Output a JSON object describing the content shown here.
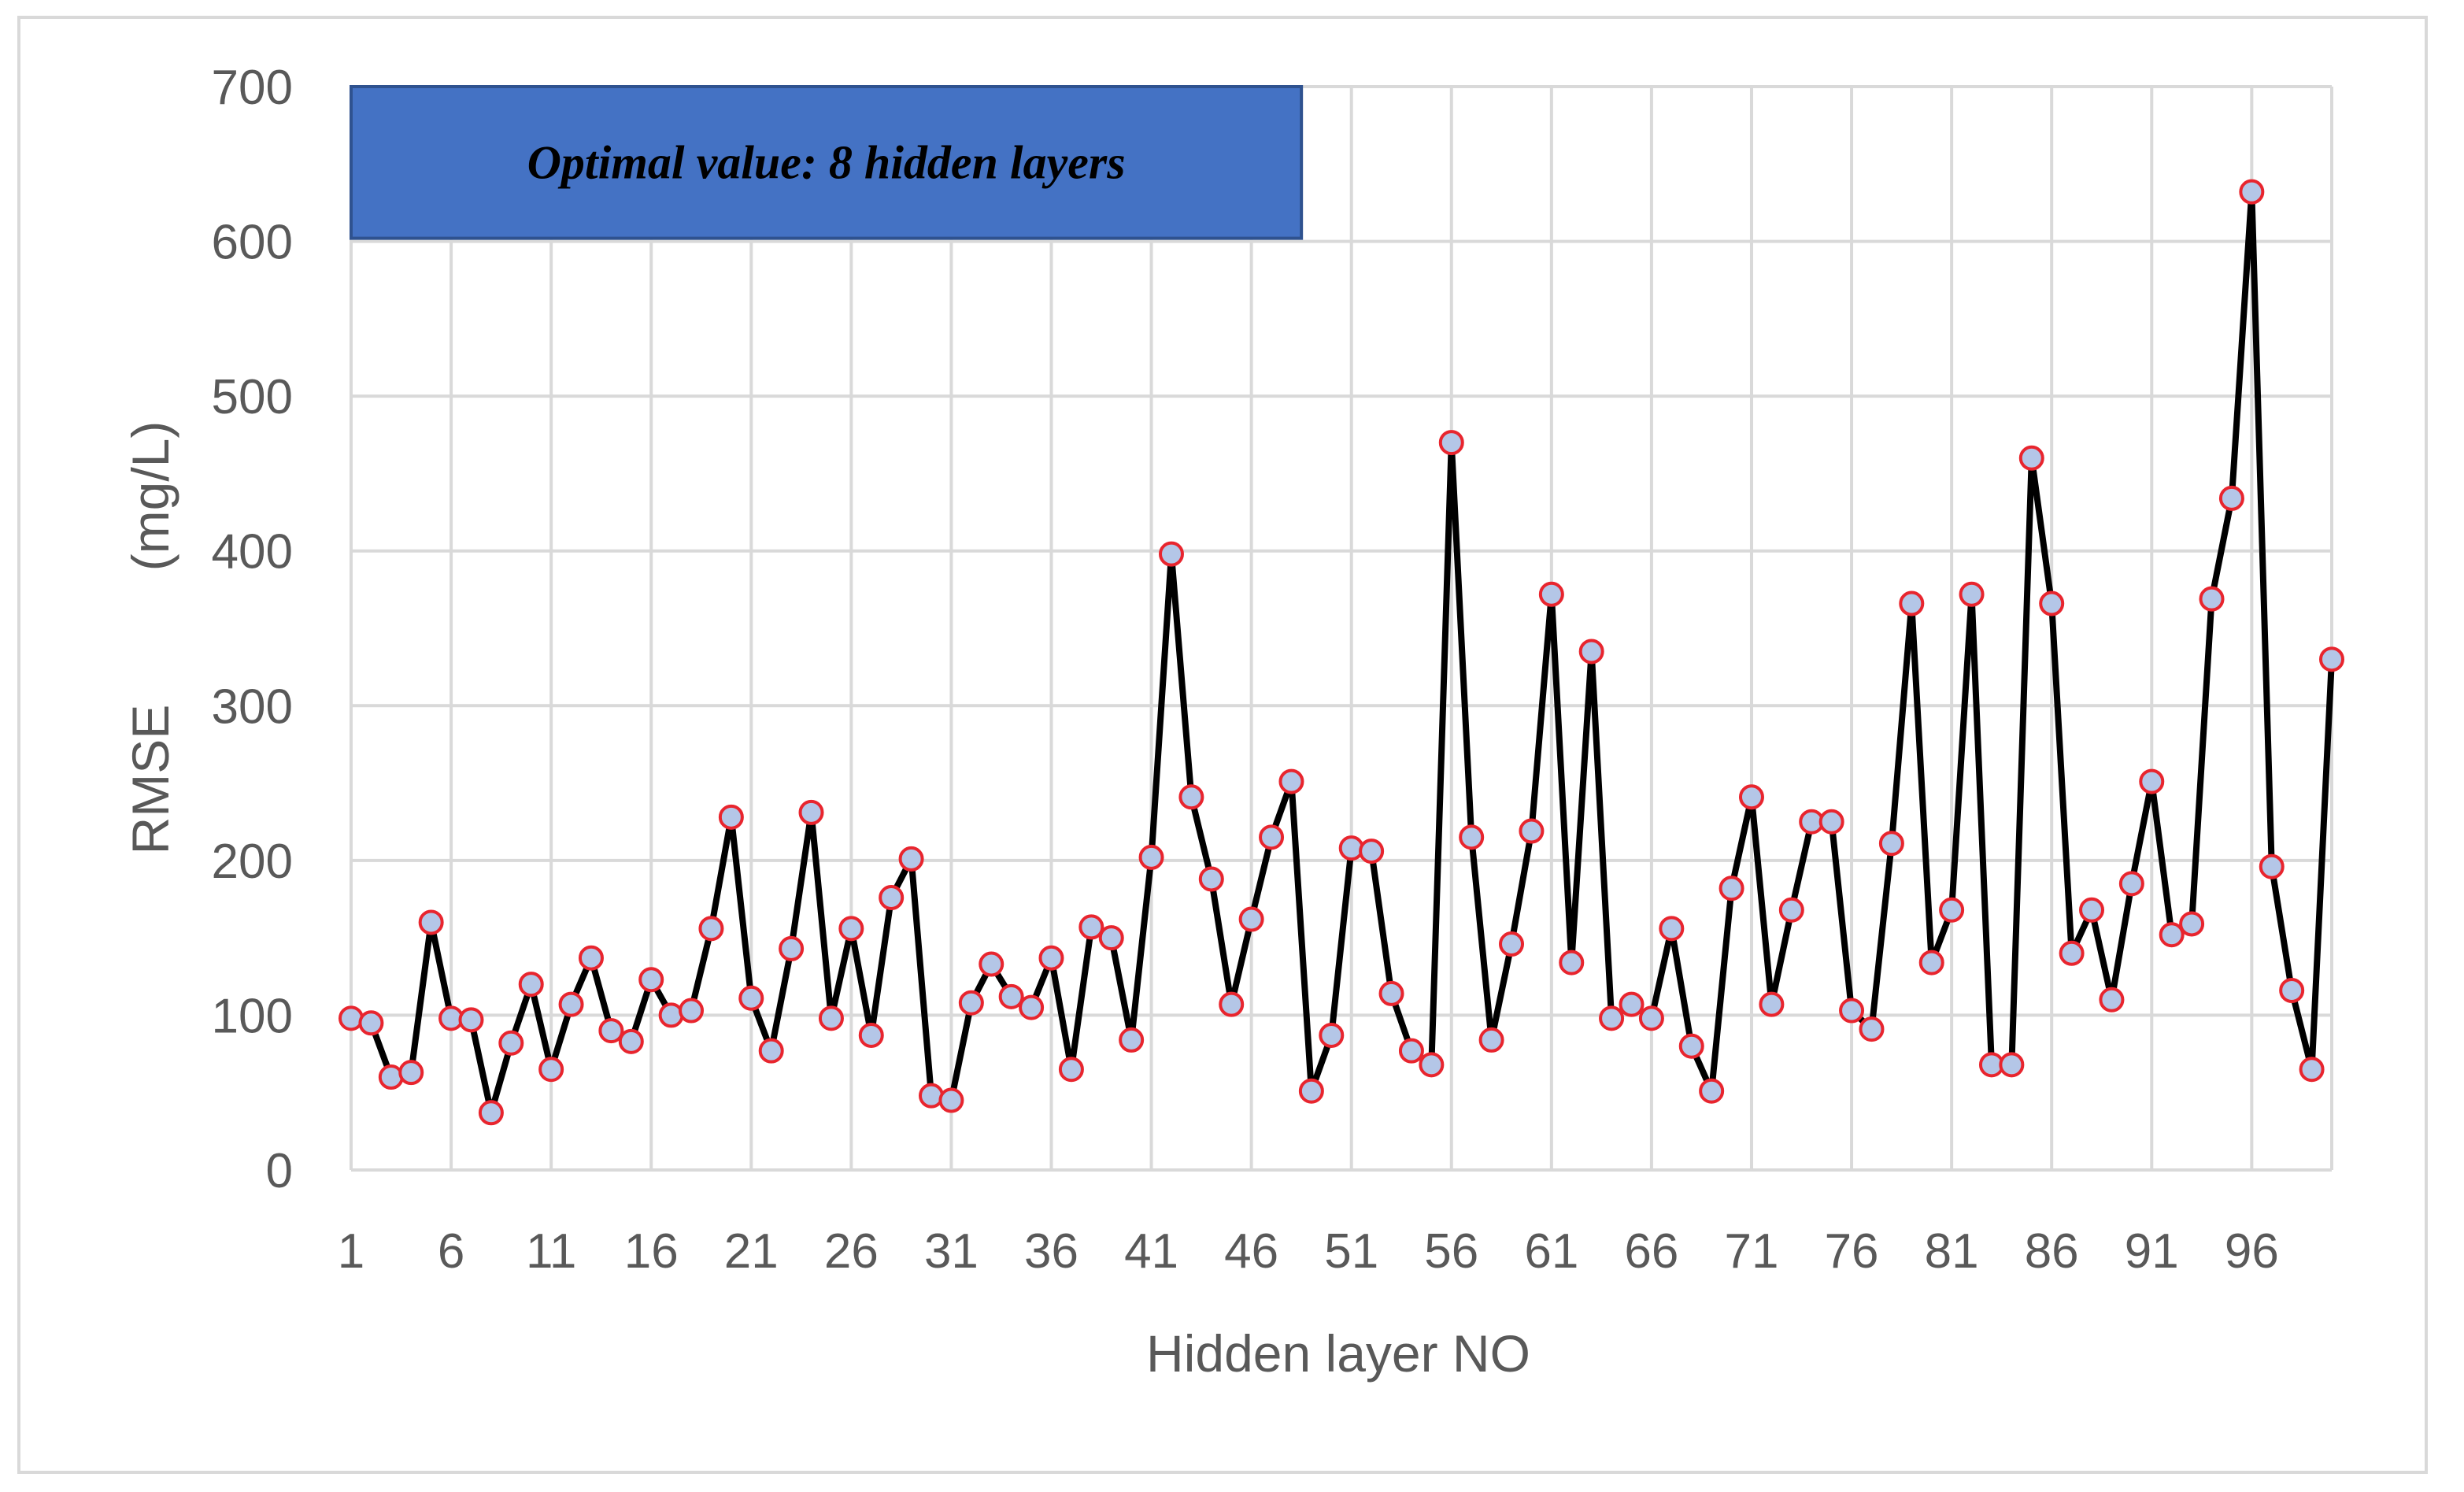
{
  "chart_data": {
    "type": "line",
    "xlabel": "Hidden layer NO",
    "ylabel": "RMSE",
    "ylabel_unit": "(mg/L)",
    "ylim": [
      0,
      700
    ],
    "yticks": [
      0,
      100,
      200,
      300,
      400,
      500,
      600,
      700
    ],
    "xtick_labels": [
      "1",
      "6",
      "11",
      "16",
      "21",
      "26",
      "31",
      "36",
      "41",
      "46",
      "51",
      "56",
      "61",
      "66",
      "71",
      "76",
      "81",
      "86",
      "91",
      "96"
    ],
    "annotation": "Optimal value: 8 hidden layers",
    "grid": true,
    "legend": "none",
    "x": [
      1,
      2,
      3,
      4,
      5,
      6,
      7,
      8,
      9,
      10,
      11,
      12,
      13,
      14,
      15,
      16,
      17,
      18,
      19,
      20,
      21,
      22,
      23,
      24,
      25,
      26,
      27,
      28,
      29,
      30,
      31,
      32,
      33,
      34,
      35,
      36,
      37,
      38,
      39,
      40,
      41,
      42,
      43,
      44,
      45,
      46,
      47,
      48,
      49,
      50,
      51,
      52,
      53,
      54,
      55,
      56,
      57,
      58,
      59,
      60,
      61,
      62,
      63,
      64,
      65,
      66,
      67,
      68,
      69,
      70,
      71,
      72,
      73,
      74,
      75,
      76,
      77,
      78,
      79,
      80,
      81,
      82,
      83,
      84,
      85,
      86,
      87,
      88,
      89,
      90,
      91,
      92,
      93,
      94,
      95,
      96,
      97,
      98,
      99,
      100
    ],
    "series": [
      {
        "values": [
          98,
          95,
          60,
          63,
          160,
          98,
          97,
          37,
          82,
          120,
          65,
          107,
          137,
          90,
          83,
          123,
          100,
          103,
          156,
          228,
          111,
          77,
          143,
          231,
          98,
          156,
          87,
          176,
          201,
          48,
          45,
          108,
          133,
          112,
          105,
          137,
          65,
          157,
          150,
          84,
          202,
          398,
          241,
          188,
          107,
          162,
          215,
          251,
          51,
          87,
          208,
          206,
          114,
          77,
          68,
          470,
          215,
          84,
          146,
          219,
          372,
          134,
          335,
          98,
          107,
          98,
          156,
          80,
          51,
          182,
          241,
          107,
          168,
          225,
          225,
          103,
          91,
          211,
          366,
          134,
          168,
          372,
          68,
          68,
          460,
          366,
          140,
          168,
          110,
          185,
          251,
          152,
          159,
          369,
          434,
          632,
          196,
          116,
          65,
          330
        ],
        "line_color": "#000000",
        "marker_fill": "#b4c6e7",
        "marker_edge": "#e8252e"
      }
    ],
    "colors": {
      "grid": "#d9d9d9",
      "text": "#595959",
      "banner_fill": "#4472c4",
      "banner_border": "#2f528f"
    }
  }
}
